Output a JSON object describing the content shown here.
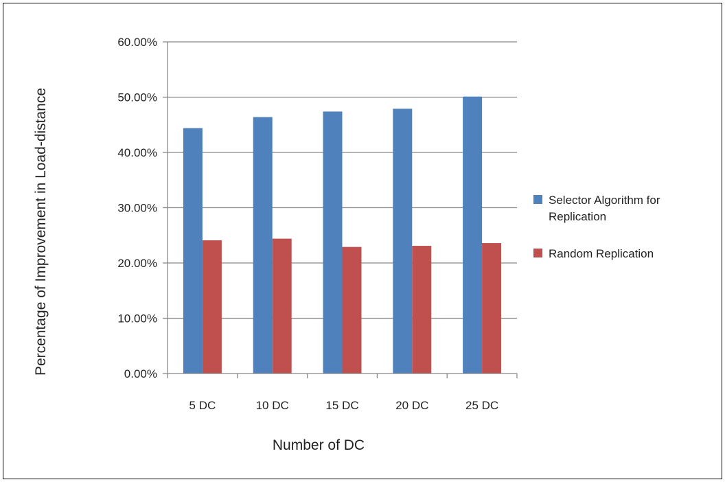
{
  "chart_data": {
    "type": "bar",
    "title": "",
    "xlabel": "Number of DC",
    "ylabel": "Percentage of Improvement in Load-distance",
    "categories": [
      "5 DC",
      "10 DC",
      "15 DC",
      "20 DC",
      "25 DC"
    ],
    "series": [
      {
        "name": "Selector Algorithm for Replication",
        "legend_lines": [
          "Selector Algorithm for",
          "Replication"
        ],
        "color": "#4F81BD",
        "values": [
          44.4,
          46.4,
          47.4,
          47.9,
          50.1
        ]
      },
      {
        "name": "Random Replication",
        "legend_lines": [
          "Random Replication"
        ],
        "color": "#C0504D",
        "values": [
          24.1,
          24.4,
          22.9,
          23.1,
          23.6
        ]
      }
    ],
    "ylim": [
      0,
      60
    ],
    "yticks": [
      0,
      10,
      20,
      30,
      40,
      50,
      60
    ],
    "ytick_labels": [
      "0.00%",
      "10.00%",
      "20.00%",
      "30.00%",
      "40.00%",
      "50.00%",
      "60.00%"
    ],
    "grid": true,
    "legend_position": "right"
  }
}
